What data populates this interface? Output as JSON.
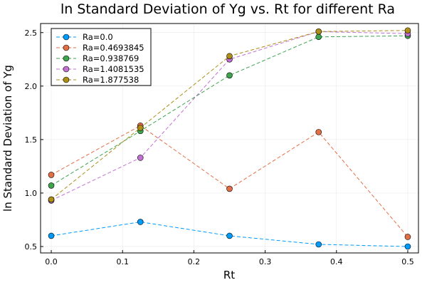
{
  "chart_data": {
    "type": "line",
    "title": "ln Standard Deviation of Yg vs. Rt for different Ra",
    "xlabel": "Rt",
    "ylabel": "ln Standard Deviation of Yg",
    "x": [
      0.0,
      0.125,
      0.25,
      0.375,
      0.5
    ],
    "xlim": [
      -0.015,
      0.515
    ],
    "ylim": [
      0.44,
      2.585
    ],
    "xticks": [
      0.0,
      0.1,
      0.2,
      0.3,
      0.4,
      0.5
    ],
    "xtick_labels": [
      "0.0",
      "0.1",
      "0.2",
      "0.3",
      "0.4",
      "0.5"
    ],
    "yticks": [
      0.5,
      1.0,
      1.5,
      2.0,
      2.5
    ],
    "ytick_labels": [
      "0.5",
      "1.0",
      "1.5",
      "2.0",
      "2.5"
    ],
    "grid": true,
    "legend_position": "top-left",
    "line_style": "dashed",
    "series": [
      {
        "name": "Ra=0.0",
        "color": "#009AFA",
        "values": [
          0.6,
          0.73,
          0.6,
          0.52,
          0.5
        ]
      },
      {
        "name": "Ra=0.4693845",
        "color": "#E36F47",
        "values": [
          1.17,
          1.63,
          1.04,
          1.57,
          0.59
        ]
      },
      {
        "name": "Ra=0.938769",
        "color": "#3EA44E",
        "values": [
          1.07,
          1.58,
          2.1,
          2.46,
          2.47
        ]
      },
      {
        "name": "Ra=1.4081535",
        "color": "#C271D2",
        "values": [
          0.93,
          1.33,
          2.25,
          2.51,
          2.49
        ]
      },
      {
        "name": "Ra=1.877538",
        "color": "#AC8E18",
        "values": [
          0.94,
          1.61,
          2.28,
          2.51,
          2.52
        ]
      }
    ]
  }
}
